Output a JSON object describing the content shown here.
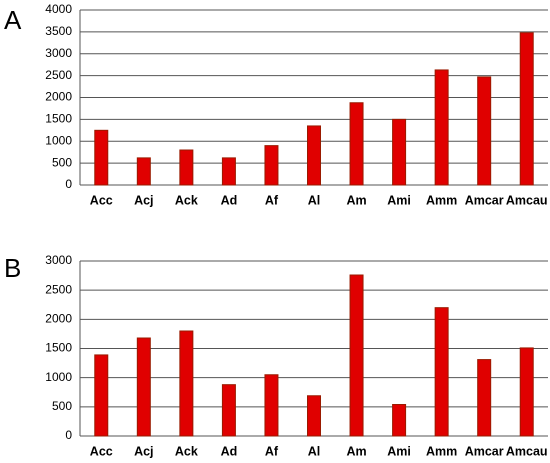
{
  "chart_data": [
    {
      "type": "bar",
      "label": "A",
      "categories": [
        "Acc",
        "Acj",
        "Ack",
        "Ad",
        "Af",
        "Al",
        "Am",
        "Ami",
        "Amm",
        "Amcar",
        "Amcau"
      ],
      "values": [
        1250,
        620,
        800,
        620,
        900,
        1350,
        1880,
        1500,
        2630,
        2470,
        3480
      ],
      "color": "#e00000",
      "ylim": [
        0,
        4000
      ],
      "yticks": [
        0,
        500,
        1000,
        1500,
        2000,
        2500,
        3000,
        3500,
        4000
      ],
      "grid": true
    },
    {
      "type": "bar",
      "label": "B",
      "categories": [
        "Acc",
        "Acj",
        "Ack",
        "Ad",
        "Af",
        "Al",
        "Am",
        "Ami",
        "Amm",
        "Amcar",
        "Amcau"
      ],
      "values": [
        1390,
        1680,
        1800,
        880,
        1050,
        690,
        2760,
        540,
        2200,
        1310,
        1510
      ],
      "color": "#e00000",
      "ylim": [
        0,
        3000
      ],
      "yticks": [
        0,
        500,
        1000,
        1500,
        2000,
        2500,
        3000
      ],
      "grid": true
    }
  ]
}
